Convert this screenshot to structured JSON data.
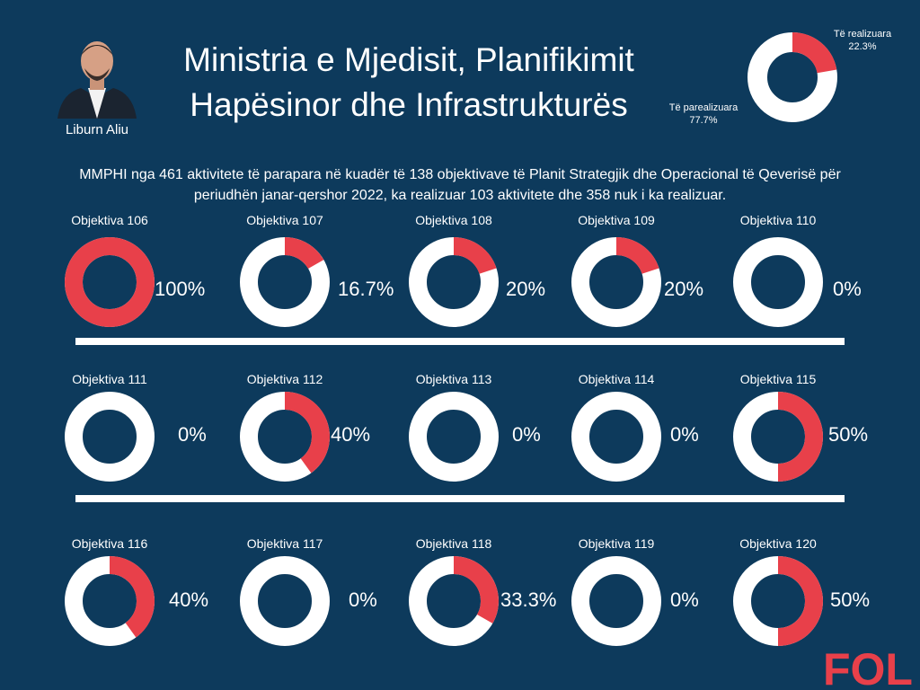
{
  "person": {
    "name": "Liburn Aliu"
  },
  "title": {
    "line1": "Ministria e Mjedisit, Planifikimit",
    "line2": "Hapësinor dhe Infrastrukturës"
  },
  "summary": {
    "line1": "MMPHI nga 461 aktivitete të parapara në kuadër të 138 objektivave të Planit Strategjik dhe Operacional të Qeverisë për",
    "line2": "periudhën janar-qershor 2022, ka realizuar 103 aktivitete dhe 358 nuk i ka realizuar."
  },
  "logo": {
    "text": "FOL"
  },
  "colors": {
    "background": "#0d3a5c",
    "realized": "#e8404a",
    "unrealized": "#ffffff"
  },
  "chart_data": [
    {
      "type": "pie",
      "categories": [
        "Të realizuara",
        "Të parealizuara"
      ],
      "values": [
        22.3,
        77.7
      ],
      "labels": [
        {
          "name": "Të realizuara",
          "value": "22.3%"
        },
        {
          "name": "Të parealizuara",
          "value": "77.7%"
        }
      ]
    },
    {
      "type": "pie",
      "categories": [
        "Objektiva 106",
        "Objektiva 107",
        "Objektiva 108",
        "Objektiva 109",
        "Objektiva 110",
        "Objektiva 111",
        "Objektiva 112",
        "Objektiva 113",
        "Objektiva 114",
        "Objektiva 115",
        "Objektiva 116",
        "Objektiva 117",
        "Objektiva 118",
        "Objektiva 119",
        "Objektiva 120"
      ],
      "values": [
        100,
        16.7,
        20,
        20,
        0,
        0,
        40,
        0,
        0,
        50,
        40,
        0,
        33.3,
        0,
        50
      ],
      "value_labels": [
        "100%",
        "16.7%",
        "20%",
        "20%",
        "0%",
        "0%",
        "40%",
        "0%",
        "0%",
        "50%",
        "40%",
        "0%",
        "33.3%",
        "0%",
        "50%"
      ]
    }
  ]
}
